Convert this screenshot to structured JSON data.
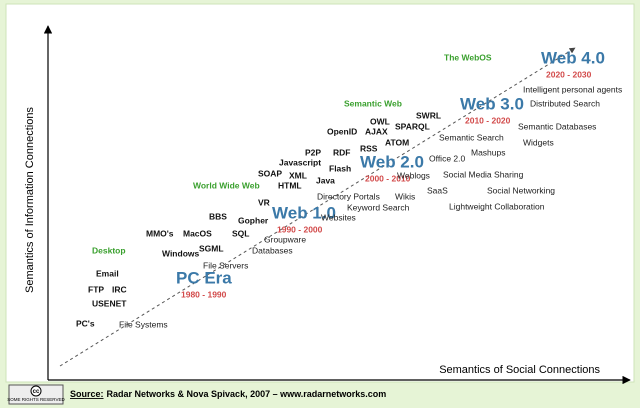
{
  "axes": {
    "y_label": "Semantics of Information Connections",
    "x_label": "Semantics of Social Connections"
  },
  "eras": [
    {
      "name": "PC Era",
      "years": "1980 - 1990"
    },
    {
      "name": "Web 1.0",
      "years": "1990 - 2000"
    },
    {
      "name": "Web 2.0",
      "years": "2000 - 2010"
    },
    {
      "name": "Web 3.0",
      "years": "2010 - 2020"
    },
    {
      "name": "Web 4.0",
      "years": "2020 - 2030"
    }
  ],
  "categories": [
    "Desktop",
    "World Wide Web",
    "Semantic Web",
    "The WebOS"
  ],
  "technologies": [
    "PC's",
    "USENET",
    "FTP",
    "IRC",
    "Email",
    "Windows",
    "SGML",
    "MMO's",
    "MacOS",
    "BBS",
    "SQL",
    "Gopher",
    "VR",
    "HTML",
    "SOAP",
    "XML",
    "Javascript",
    "Java",
    "Flash",
    "P2P",
    "RDF",
    "OpenID",
    "AJAX",
    "RSS",
    "ATOM",
    "OWL",
    "SPARQL",
    "SWRL"
  ],
  "applications": [
    "File Systems",
    "File Servers",
    "Databases",
    "Groupware",
    "Websites",
    "Directory Portals",
    "Keyword Search",
    "Wikis",
    "Weblogs",
    "SaaS",
    "Office 2.0",
    "Mashups",
    "Semantic Search",
    "Social Media Sharing",
    "Social Networking",
    "Lightweight Collaboration",
    "Widgets",
    "Semantic Databases",
    "Distributed Search",
    "Intelligent personal agents"
  ],
  "footer": {
    "badge_logo": "cc",
    "badge_text": "SOME RIGHTS RESERVED",
    "source_prefix": "Source:",
    "source_text": "Radar Networks & Nova Spivack, 2007 – www.radarnetworks.com"
  }
}
